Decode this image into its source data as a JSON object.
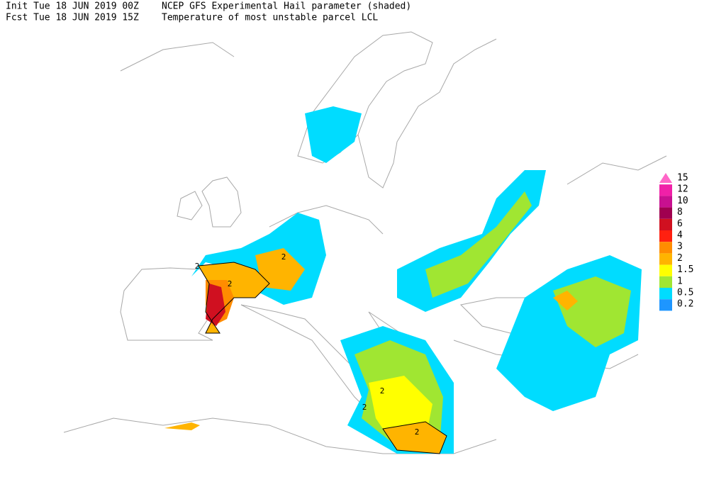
{
  "header": {
    "init": "Init  Tue 18 JUN 2019 00Z",
    "fcst": "Fcst Tue 18 JUN 2019 15Z",
    "title": "NCEP GFS Experimental Hail parameter (shaded)",
    "subtitle": "Temperature of most unstable parcel LCL"
  },
  "legend": {
    "items": [
      {
        "label": "15",
        "color": "#ff66c8"
      },
      {
        "label": "12",
        "color": "#f020a8"
      },
      {
        "label": "10",
        "color": "#c81090"
      },
      {
        "label": "8",
        "color": "#a00050"
      },
      {
        "label": "6",
        "color": "#d01020"
      },
      {
        "label": "4",
        "color": "#ff2010"
      },
      {
        "label": "3",
        "color": "#ff8c00"
      },
      {
        "label": "2",
        "color": "#ffb400"
      },
      {
        "label": "1.5",
        "color": "#ffff00"
      },
      {
        "label": "1",
        "color": "#a0e632"
      },
      {
        "label": "0.5",
        "color": "#00dcff"
      },
      {
        "label": "0.2",
        "color": "#1e96ff"
      }
    ]
  },
  "contour_labels": [
    "2",
    "2",
    "2",
    "2",
    "2",
    "2"
  ]
}
